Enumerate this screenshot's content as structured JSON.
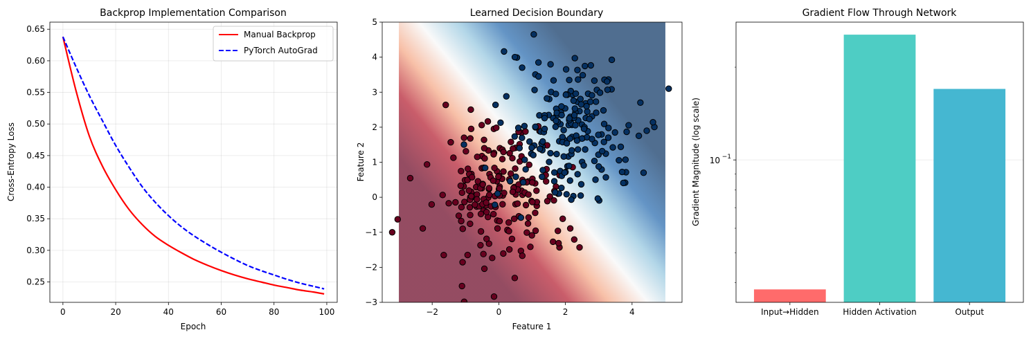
{
  "chart_data": [
    {
      "type": "line",
      "title": "Backprop Implementation Comparison",
      "xlabel": "Epoch",
      "ylabel": "Cross-Entropy Loss",
      "xlim": [
        -4.95,
        103.95
      ],
      "ylim": [
        0.2177,
        0.6612
      ],
      "xticks": [
        0,
        20,
        40,
        60,
        80,
        100
      ],
      "yticks": [
        0.25,
        0.3,
        0.35,
        0.4,
        0.45,
        0.5,
        0.55,
        0.6,
        0.65
      ],
      "ytick_labels": [
        "0.25",
        "0.30",
        "0.35",
        "0.40",
        "0.45",
        "0.50",
        "0.55",
        "0.60",
        "0.65"
      ],
      "grid": true,
      "legend": "top-right",
      "series": [
        {
          "name": "Manual Backprop",
          "color": "#ff0000",
          "style": "solid",
          "x": [
            0,
            5,
            10,
            15,
            20,
            25,
            30,
            35,
            40,
            45,
            50,
            55,
            60,
            65,
            70,
            75,
            80,
            85,
            90,
            95,
            99
          ],
          "y": [
            0.638,
            0.552,
            0.481,
            0.433,
            0.396,
            0.365,
            0.341,
            0.322,
            0.308,
            0.296,
            0.285,
            0.276,
            0.268,
            0.261,
            0.255,
            0.25,
            0.245,
            0.241,
            0.237,
            0.234,
            0.231
          ]
        },
        {
          "name": "PyTorch AutoGrad",
          "color": "#0000ff",
          "style": "dashed",
          "x": [
            0,
            5,
            10,
            15,
            20,
            25,
            30,
            35,
            40,
            45,
            50,
            55,
            60,
            65,
            70,
            75,
            80,
            85,
            90,
            95,
            99
          ],
          "y": [
            0.638,
            0.59,
            0.545,
            0.505,
            0.466,
            0.432,
            0.401,
            0.376,
            0.355,
            0.337,
            0.322,
            0.309,
            0.297,
            0.286,
            0.276,
            0.268,
            0.261,
            0.254,
            0.248,
            0.243,
            0.239
          ]
        }
      ]
    },
    {
      "type": "scatter",
      "title": "Learned Decision Boundary",
      "xlabel": "Feature 1",
      "ylabel": "Feature 2",
      "xlim": [
        -3.5,
        5.5
      ],
      "ylim": [
        -3,
        5
      ],
      "xticks": [
        -2,
        0,
        2,
        4
      ],
      "yticks": [
        -3,
        -2,
        -1,
        0,
        1,
        2,
        3,
        4,
        5
      ],
      "tick_labels_x": [
        "−2",
        "0",
        "2",
        "4"
      ],
      "tick_labels_y": [
        "−3",
        "−2",
        "−1",
        "0",
        "1",
        "2",
        "3",
        "4",
        "5"
      ],
      "contour_extent": {
        "x": [
          -3,
          5
        ],
        "y": [
          -3,
          5
        ]
      },
      "boundary": "x + y = 2 (probability rises toward upper-right)",
      "colors": {
        "class0": "#67001f",
        "class1": "#053061",
        "edge": "#000000"
      },
      "class0_center": [
        0,
        0
      ],
      "class1_center": [
        2,
        2
      ],
      "points_per_class": 200,
      "outliers": [
        [
          -3.2,
          -1.0
        ],
        [
          5.1,
          3.1
        ],
        [
          1.05,
          4.65
        ]
      ]
    },
    {
      "type": "bar",
      "title": "Gradient Flow Through Network",
      "ylabel": "Gradient Magnitude (log scale)",
      "yscale": "log",
      "ylim": [
        0.0345,
        0.28
      ],
      "ytick_value": 0.1,
      "ytick_label_base": "10",
      "ytick_label_exp": "−1",
      "grid": true,
      "categories": [
        "Input→Hidden",
        "Hidden Activation",
        "Output"
      ],
      "values": [
        0.038,
        0.255,
        0.17
      ],
      "colors": [
        "#ff6b6b",
        "#4ecdc4",
        "#45b7d1"
      ]
    }
  ]
}
